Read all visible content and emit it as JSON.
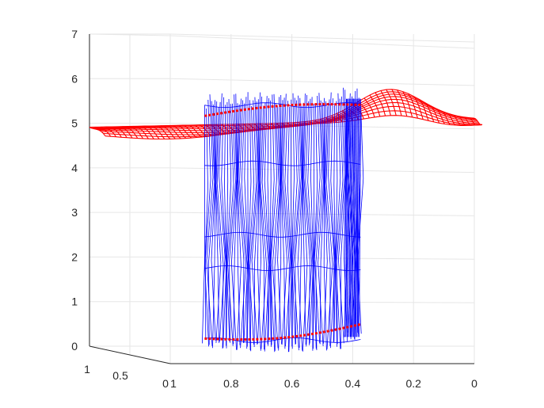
{
  "chart_data": {
    "type": "surface-3d-mesh",
    "title": "",
    "xlabel": "",
    "ylabel": "",
    "zlabel": "",
    "view": "3d-perspective",
    "grid": true,
    "x_axis": {
      "range": [
        0,
        1
      ],
      "direction": "decreasing-left-to-right",
      "tick_labels": [
        "1",
        "0.8",
        "0.6",
        "0.4",
        "0.2",
        "0"
      ]
    },
    "y_axis": {
      "range": [
        0,
        1
      ],
      "tick_labels": [
        "1",
        "0.5",
        "0"
      ]
    },
    "z_axis": {
      "range": [
        0,
        7
      ],
      "tick_labels": [
        "0",
        "1",
        "2",
        "3",
        "4",
        "5",
        "6",
        "7"
      ]
    },
    "series": [
      {
        "color": "#ff0000",
        "style": "wireframe surface",
        "description_values": {
          "z_level_approx": 5.0,
          "z_min_approx": 4.8,
          "z_max_approx": 6.0
        }
      },
      {
        "color": "#0000ff",
        "style": "wireframe surface",
        "x_extent_approx": [
          0.4,
          0.9
        ],
        "z_extent_approx": [
          0.0,
          6.0
        ]
      }
    ],
    "boundary_curves": {
      "color": "#ff0000",
      "z_levels_approx": [
        0.1,
        5.2
      ]
    }
  }
}
